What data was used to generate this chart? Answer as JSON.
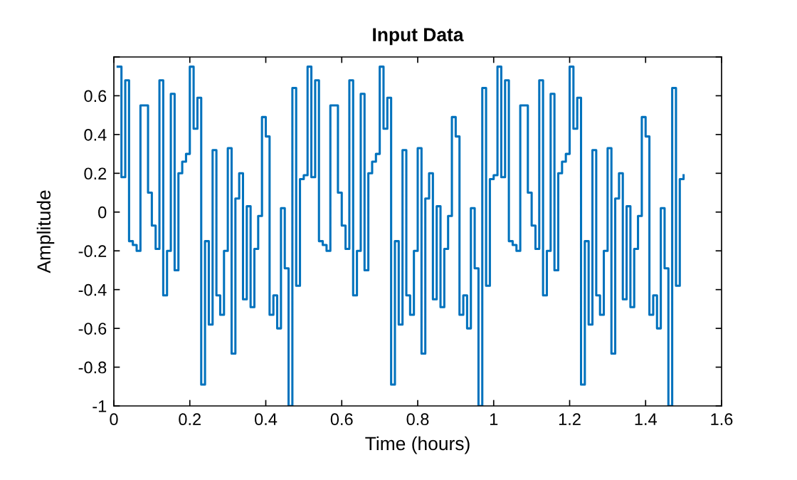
{
  "chart_data": {
    "type": "step",
    "title": "Input Data",
    "xlabel": "Time (hours)",
    "ylabel": "Amplitude",
    "x": [
      0.01,
      0.02,
      0.03,
      0.04,
      0.05,
      0.06,
      0.07,
      0.08,
      0.09,
      0.1,
      0.11,
      0.12,
      0.13,
      0.14,
      0.15,
      0.16,
      0.17,
      0.18,
      0.19,
      0.2,
      0.21,
      0.22,
      0.23,
      0.24,
      0.25,
      0.26,
      0.27,
      0.28,
      0.29,
      0.3,
      0.31,
      0.32,
      0.33,
      0.34,
      0.35,
      0.36,
      0.37,
      0.38,
      0.39,
      0.4,
      0.41,
      0.42,
      0.43,
      0.44,
      0.45,
      0.46,
      0.47,
      0.48,
      0.49,
      0.5,
      0.51,
      0.52,
      0.53,
      0.54,
      0.55,
      0.56,
      0.57,
      0.58,
      0.59,
      0.6,
      0.61,
      0.62,
      0.63,
      0.64,
      0.65,
      0.66,
      0.67,
      0.68,
      0.69,
      0.7,
      0.71,
      0.72,
      0.73,
      0.74,
      0.75,
      0.76,
      0.77,
      0.78,
      0.79,
      0.8,
      0.81,
      0.82,
      0.83,
      0.84,
      0.85,
      0.86,
      0.87,
      0.88,
      0.89,
      0.9,
      0.91,
      0.92,
      0.93,
      0.94,
      0.95,
      0.96,
      0.97,
      0.98,
      0.99,
      1.0,
      1.01,
      1.02,
      1.03,
      1.04,
      1.05,
      1.06,
      1.07,
      1.08,
      1.09,
      1.1,
      1.11,
      1.12,
      1.13,
      1.14,
      1.15,
      1.16,
      1.17,
      1.18,
      1.19,
      1.2,
      1.21,
      1.22,
      1.23,
      1.24,
      1.25,
      1.26,
      1.27,
      1.28,
      1.29,
      1.3,
      1.31,
      1.32,
      1.33,
      1.34,
      1.35,
      1.36,
      1.37,
      1.38,
      1.39,
      1.4,
      1.41,
      1.42,
      1.43,
      1.44,
      1.45,
      1.46,
      1.47,
      1.48,
      1.49,
      1.5
    ],
    "series": [
      {
        "color": "#0072bd",
        "values": [
          0.75,
          0.18,
          0.68,
          -0.15,
          -0.17,
          -0.2,
          0.55,
          0.55,
          0.1,
          -0.07,
          -0.19,
          0.68,
          -0.43,
          -0.2,
          0.61,
          -0.3,
          0.2,
          0.26,
          0.3,
          0.75,
          0.43,
          0.59,
          -0.89,
          -0.15,
          -0.58,
          0.32,
          -0.43,
          -0.53,
          -0.2,
          0.33,
          -0.73,
          0.07,
          0.2,
          -0.45,
          0.03,
          -0.49,
          -0.19,
          -0.02,
          0.49,
          0.39,
          -0.53,
          -0.43,
          -0.6,
          0.02,
          -0.29,
          -1,
          0.64,
          -0.38,
          0.17,
          0.19,
          0.75,
          0.18,
          0.68,
          -0.15,
          -0.17,
          -0.2,
          0.55,
          0.55,
          0.1,
          -0.07,
          -0.19,
          0.68,
          -0.43,
          -0.2,
          0.61,
          -0.3,
          0.2,
          0.26,
          0.3,
          0.75,
          0.43,
          0.59,
          -0.89,
          -0.15,
          -0.58,
          0.32,
          -0.43,
          -0.53,
          -0.2,
          0.33,
          -0.73,
          0.07,
          0.2,
          -0.45,
          0.03,
          -0.49,
          -0.19,
          -0.02,
          0.49,
          0.39,
          -0.53,
          -0.43,
          -0.6,
          0.02,
          -0.29,
          -1,
          0.64,
          -0.38,
          0.17,
          0.19,
          0.75,
          0.18,
          0.68,
          -0.15,
          -0.17,
          -0.2,
          0.55,
          0.55,
          0.1,
          -0.07,
          -0.19,
          0.68,
          -0.43,
          -0.2,
          0.61,
          -0.3,
          0.2,
          0.26,
          0.3,
          0.75,
          0.43,
          0.59,
          -0.89,
          -0.15,
          -0.58,
          0.32,
          -0.43,
          -0.53,
          -0.2,
          0.33,
          -0.73,
          0.07,
          0.2,
          -0.45,
          0.03,
          -0.49,
          -0.19,
          -0.02,
          0.49,
          0.39,
          -0.53,
          -0.43,
          -0.6,
          0.02,
          -0.29,
          -1,
          0.64,
          -0.38,
          0.17,
          0.19
        ]
      }
    ],
    "xlim": [
      0,
      1.6
    ],
    "xticks": [
      0,
      0.2,
      0.4,
      0.6,
      0.8,
      1,
      1.2,
      1.4,
      1.6
    ],
    "ylim": [
      -1,
      0.8
    ],
    "yticks": [
      -1,
      -0.8,
      -0.6,
      -0.4,
      -0.2,
      0,
      0.2,
      0.4,
      0.6,
      {
        "value": 0.8,
        "label": null
      }
    ],
    "grid": false,
    "legend": false,
    "line_style": "solid",
    "marker": "none"
  }
}
